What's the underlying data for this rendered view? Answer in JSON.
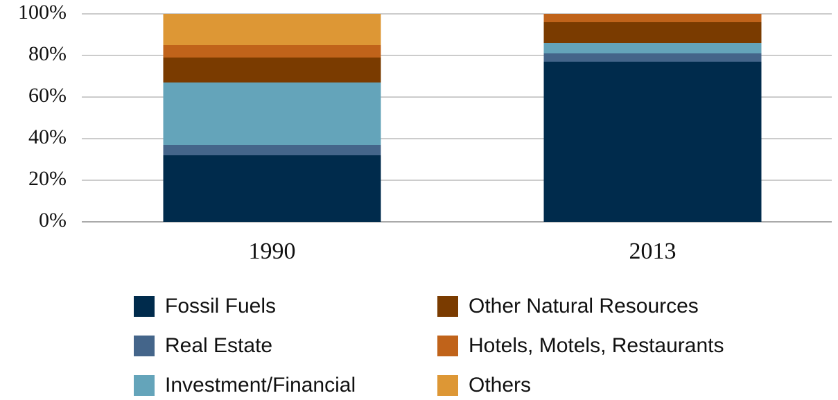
{
  "chart_data": {
    "type": "stacked_bar",
    "categories": [
      "1990",
      "2013"
    ],
    "series": [
      {
        "name": "Fossil Fuels",
        "color": "#002b4c",
        "values": [
          32,
          77
        ]
      },
      {
        "name": "Real Estate",
        "color": "#44658a",
        "values": [
          5,
          4
        ]
      },
      {
        "name": "Investment/Financial",
        "color": "#64a4ba",
        "values": [
          30,
          5
        ]
      },
      {
        "name": "Other Natural Resources",
        "color": "#7a3b00",
        "values": [
          12,
          10
        ]
      },
      {
        "name": "Hotels, Motels, Restaurants",
        "color": "#c0631a",
        "values": [
          6,
          4
        ]
      },
      {
        "name": "Others",
        "color": "#dd9735",
        "values": [
          15,
          0
        ]
      }
    ],
    "ylim": [
      0,
      100
    ],
    "yticks": [
      {
        "value": 0,
        "label": "0%"
      },
      {
        "value": 20,
        "label": "20%"
      },
      {
        "value": 40,
        "label": "40%"
      },
      {
        "value": 60,
        "label": "60%"
      },
      {
        "value": 80,
        "label": "80%"
      },
      {
        "value": 100,
        "label": "100%"
      }
    ],
    "grid": true
  }
}
